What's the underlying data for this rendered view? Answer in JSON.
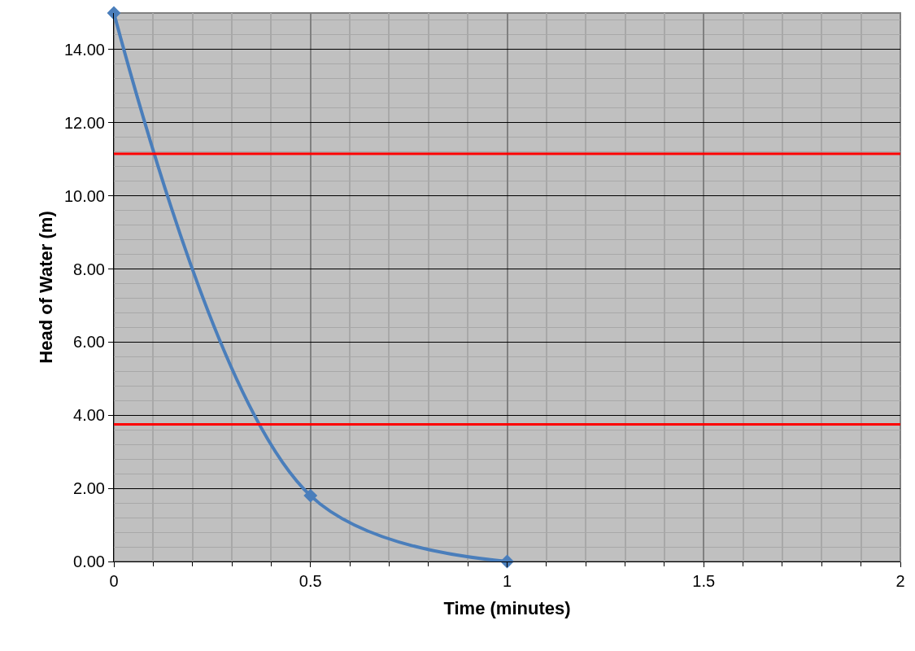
{
  "chart_data": {
    "type": "line",
    "xlabel": "Time (minutes)",
    "ylabel": "Head of Water (m)",
    "x": [
      0,
      0.5,
      1
    ],
    "series": [
      {
        "color": "#4a7ebb",
        "values": [
          15,
          1.8,
          0
        ]
      }
    ],
    "xlim": [
      0,
      2
    ],
    "xticks": [
      0,
      0.5,
      1,
      1.5,
      2
    ],
    "ylim": [
      0,
      15
    ],
    "yticks": [
      {
        "value": 0,
        "label": "0.00"
      },
      {
        "value": 2,
        "label": "2.00"
      },
      {
        "value": 4,
        "label": "4.00"
      },
      {
        "value": 6,
        "label": "6.00"
      },
      {
        "value": 8,
        "label": "8.00"
      },
      {
        "value": 10,
        "label": "10.00"
      },
      {
        "value": 12,
        "label": "12.00"
      },
      {
        "value": 14,
        "label": "14.00"
      }
    ],
    "ref_lines": [
      {
        "axis": "y",
        "value": 11.15,
        "color": "#ff0000"
      },
      {
        "axis": "y",
        "value": 3.75,
        "color": "#ff0000"
      }
    ],
    "grid": true,
    "marker": "diamond",
    "line_style": "solid"
  }
}
